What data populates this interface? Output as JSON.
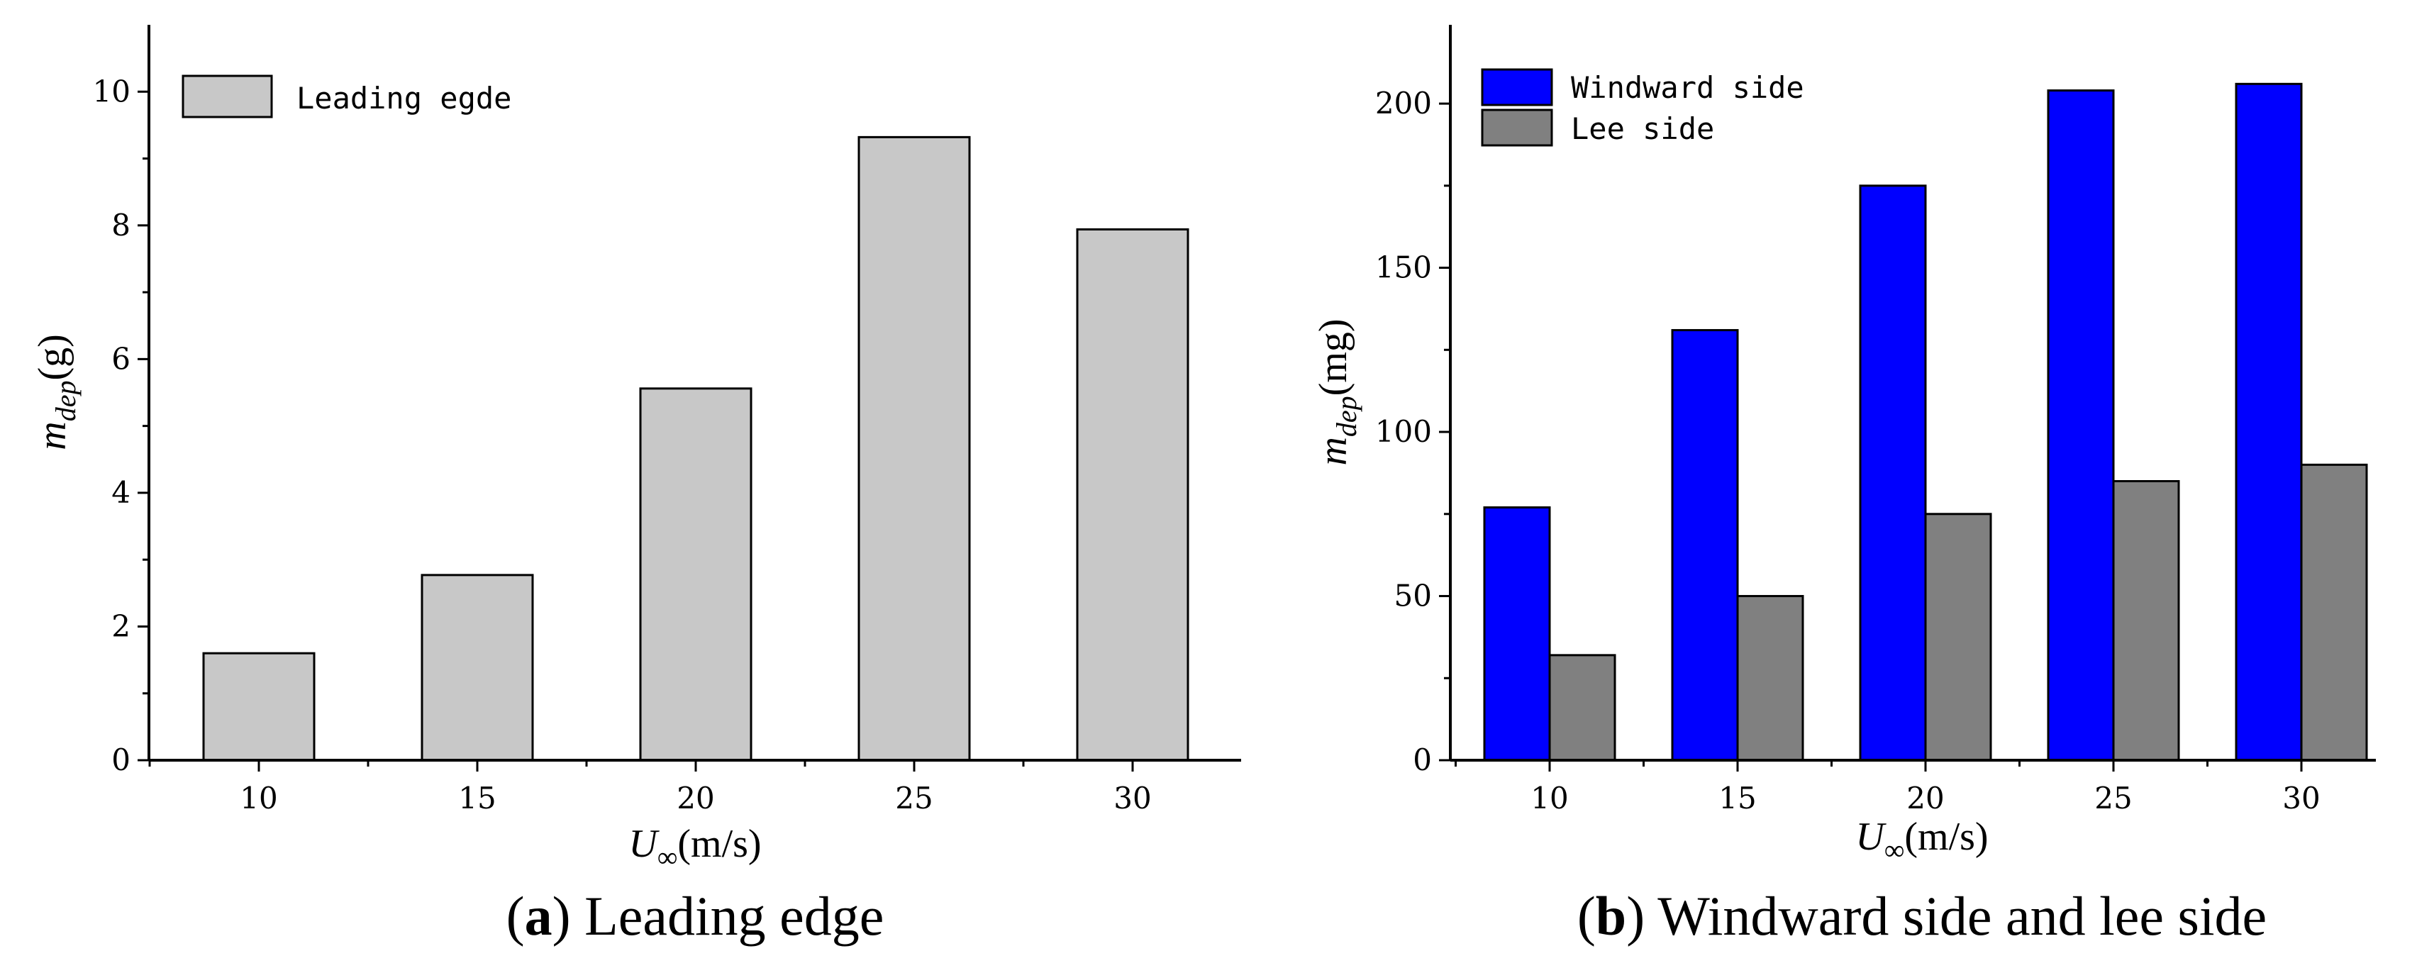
{
  "chart_data": [
    {
      "type": "bar",
      "panel": "a",
      "caption_letter": "a",
      "caption_text": "Leading edge",
      "categories": [
        "10",
        "15",
        "20",
        "25",
        "30"
      ],
      "series": [
        {
          "name": "Leading egde",
          "values": [
            1.6,
            2.77,
            5.56,
            9.32,
            7.94
          ],
          "color": "#c8c8c8"
        }
      ],
      "legend": {
        "position": "top-left",
        "entries": [
          "Leading egde"
        ]
      },
      "xlabel_sym": "U",
      "xlabel_sub": "∞",
      "xlabel_unit": "(m/s)",
      "ylabel_sym": "m",
      "ylabel_sub": "dep",
      "ylabel_unit": "(g)",
      "yticks": [
        "0",
        "2",
        "4",
        "6",
        "8",
        "10"
      ],
      "ylim": [
        0,
        11
      ]
    },
    {
      "type": "bar",
      "panel": "b",
      "caption_letter": "b",
      "caption_text": "Windward side and lee side",
      "categories": [
        "10",
        "15",
        "20",
        "25",
        "30"
      ],
      "series": [
        {
          "name": "Windward side",
          "values": [
            77,
            131,
            175,
            204,
            206
          ],
          "color": "#0000ff"
        },
        {
          "name": "Lee side",
          "values": [
            32,
            50,
            75,
            85,
            90
          ],
          "color": "#808080"
        }
      ],
      "legend": {
        "position": "top-left",
        "entries": [
          "Windward side",
          "Lee side"
        ]
      },
      "xlabel_sym": "U",
      "xlabel_sub": "∞",
      "xlabel_unit": "(m/s)",
      "ylabel_sym": "m",
      "ylabel_sub": "dep",
      "ylabel_unit": "(mg)",
      "yticks": [
        "0",
        "50",
        "100",
        "150",
        "200"
      ],
      "ylim": [
        0,
        224
      ]
    }
  ]
}
